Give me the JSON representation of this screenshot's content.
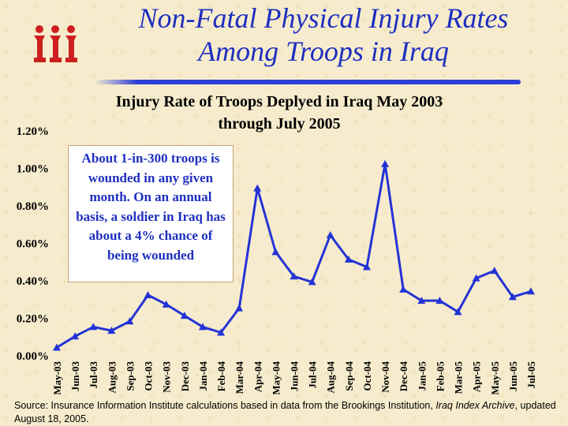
{
  "slide": {
    "title_line1": "Non-Fatal Physical Injury Rates",
    "title_line2": "Among Troops in Iraq",
    "logo_text": "iii"
  },
  "callout": {
    "text": "About 1-in-300 troops is wounded in any given month.  On an annual basis, a soldier in Iraq has about a 4% chance of being wounded"
  },
  "source": {
    "prefix": "Source:  Insurance Information Institute calculations based in data from the Brookings Institution, ",
    "italic": "Iraq Index Archive",
    "suffix": ", updated August 18, 2005."
  },
  "colors": {
    "title": "#1f2fbf",
    "series": "#2433d6",
    "logo": "#cc2020",
    "rule": "#2b3fd6"
  },
  "chart_data": {
    "type": "line",
    "title_line1": "Injury Rate of Troops Deplyed in Iraq May 2003",
    "title_line2": "through July 2005",
    "xlabel": "",
    "ylabel": "",
    "ylim": [
      0,
      1.2
    ],
    "yticks": [
      0.0,
      0.2,
      0.4,
      0.6,
      0.8,
      1.0,
      1.2
    ],
    "ytick_labels": [
      "0.00%",
      "0.20%",
      "0.40%",
      "0.60%",
      "0.80%",
      "1.00%",
      "1.20%"
    ],
    "categories": [
      "May-03",
      "Jun-03",
      "Jul-03",
      "Aug-03",
      "Sep-03",
      "Oct-03",
      "Nov-03",
      "Dec-03",
      "Jan-04",
      "Feb-04",
      "Mar-04",
      "Apr-04",
      "May-04",
      "Jun-04",
      "Jul-04",
      "Aug-04",
      "Sep-04",
      "Oct-04",
      "Nov-04",
      "Dec-04",
      "Jan-05",
      "Feb-05",
      "Mar-05",
      "Apr-05",
      "May-05",
      "Jun-05",
      "Jul-05"
    ],
    "series": [
      {
        "values": [
          0.04,
          0.1,
          0.15,
          0.13,
          0.18,
          0.32,
          0.27,
          0.21,
          0.15,
          0.12,
          0.25,
          0.89,
          0.55,
          0.42,
          0.39,
          0.64,
          0.51,
          0.47,
          1.02,
          0.35,
          0.29,
          0.29,
          0.23,
          0.41,
          0.45,
          0.31,
          0.34
        ]
      }
    ],
    "grid": false,
    "legend": "none"
  }
}
